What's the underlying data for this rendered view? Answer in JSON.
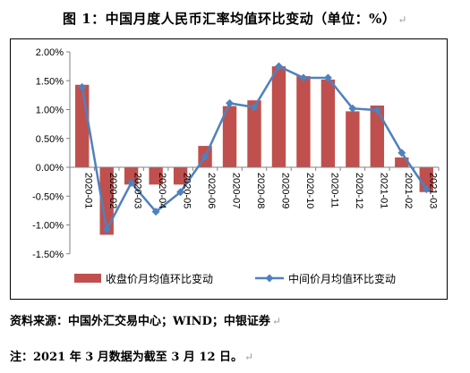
{
  "page": {
    "title": "图 1：中国月度人民币汇率均值环比变动（单位：%）",
    "source_note": "资料来源：中国外汇交易中心；WIND；中银证券",
    "footnote": "注：2021 年 3 月数据为截至 3 月 12 日。",
    "paragraph_mark": "↵"
  },
  "chart_data": {
    "type": "bar",
    "title": "图 1：中国月度人民币汇率均值环比变动（单位：%）",
    "categories": [
      "2020-01",
      "2020-02",
      "2020-03",
      "2020-04",
      "2020-05",
      "2020-06",
      "2020-07",
      "2020-08",
      "2020-09",
      "2020-10",
      "2020-11",
      "2020-12",
      "2021-01",
      "2021-02",
      "2021-03"
    ],
    "series": [
      {
        "name": "收盘价月均值环比变动",
        "type": "bar",
        "color": "#C0504D",
        "values": [
          1.43,
          -1.17,
          -0.3,
          -0.3,
          -0.3,
          0.37,
          1.06,
          1.16,
          1.75,
          1.58,
          1.52,
          0.97,
          1.07,
          0.17,
          -0.43
        ]
      },
      {
        "name": "中间价月均值环比变动",
        "type": "line",
        "color": "#4F81BD",
        "values": [
          1.39,
          -1.08,
          -0.27,
          -0.77,
          -0.43,
          0.18,
          1.11,
          1.04,
          1.75,
          1.55,
          1.55,
          1.02,
          0.99,
          0.25,
          -0.38
        ]
      }
    ],
    "yticks": [
      "2.00%",
      "1.50%",
      "1.00%",
      "0.50%",
      "0.00%",
      "-0.50%",
      "-1.00%",
      "-1.50%"
    ],
    "ylim": [
      -1.5,
      2.0
    ],
    "grid": false,
    "legend": "bottom"
  }
}
